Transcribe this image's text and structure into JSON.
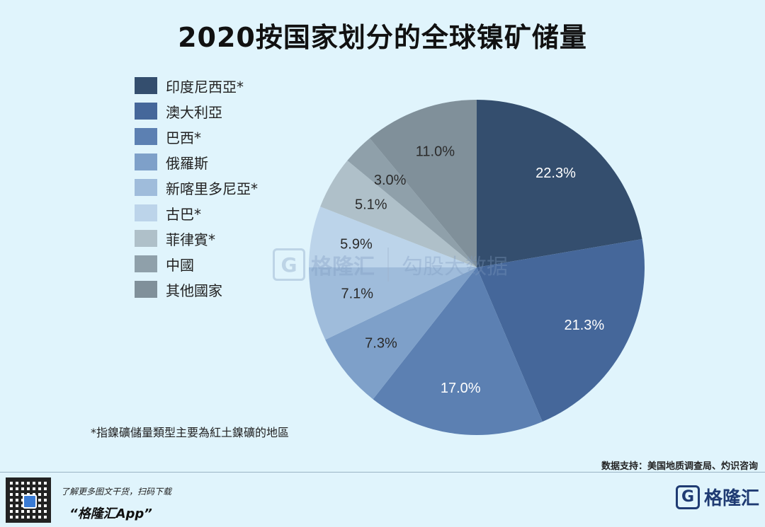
{
  "title": "2020按国家划分的全球镍矿储量",
  "chart_data": {
    "type": "pie",
    "title": "2020按国家划分的全球镍矿储量",
    "legend_position": "left",
    "slices": [
      {
        "name": "印度尼西亞*",
        "value": 22.3,
        "label": "22.3%",
        "color": "#344e6e"
      },
      {
        "name": "澳大利亞",
        "value": 21.3,
        "label": "21.3%",
        "color": "#45679a"
      },
      {
        "name": "巴西*",
        "value": 17.0,
        "label": "17.0%",
        "color": "#5c80b2"
      },
      {
        "name": "俄羅斯",
        "value": 7.3,
        "label": "7.3%",
        "color": "#7ea0c9"
      },
      {
        "name": "新喀里多尼亞*",
        "value": 7.1,
        "label": "7.1%",
        "color": "#9fbcdb"
      },
      {
        "name": "古巴*",
        "value": 5.9,
        "label": "5.9%",
        "color": "#bcd4ea"
      },
      {
        "name": "菲律賓*",
        "value": 5.1,
        "label": "5.1%",
        "color": "#afc0c9"
      },
      {
        "name": "中國",
        "value": 3.0,
        "label": "3.0%",
        "color": "#8fa0aa"
      },
      {
        "name": "其他國家",
        "value": 11.0,
        "label": "11.0%",
        "color": "#80909a"
      }
    ]
  },
  "watermark": {
    "mark": "G",
    "brand": "格隆汇",
    "sub": "勾股大数据"
  },
  "footnote": "*指鎳礦儲量類型主要為紅土鎳礦的地區",
  "source": "数据支持：美国地质调查局、灼识咨询",
  "promo": {
    "line": "了解更多图文干货，扫码下载",
    "app_name": "“格隆汇App”"
  },
  "brand": {
    "mark": "G",
    "name": "格隆汇"
  }
}
